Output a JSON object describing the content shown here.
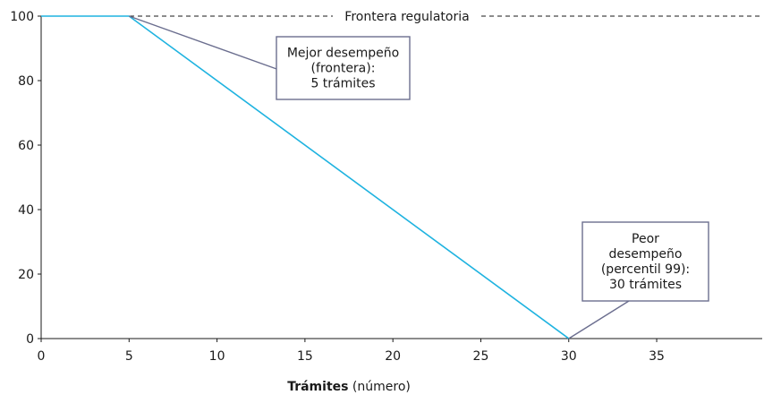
{
  "chart_data": {
    "type": "line",
    "title": "",
    "xlabel": "Trámites",
    "xlabel_unit": "(número)",
    "ylabel": "",
    "xlim": [
      0,
      41
    ],
    "ylim": [
      0,
      100
    ],
    "x_ticks": [
      0,
      5,
      10,
      15,
      20,
      25,
      30,
      35
    ],
    "y_ticks": [
      0,
      20,
      40,
      60,
      80,
      100
    ],
    "grid": false,
    "series": [
      {
        "x": [
          0,
          5,
          30
        ],
        "y": [
          100,
          100,
          0
        ],
        "color": "#1fb3e0"
      }
    ],
    "frontier_line": {
      "y": 100,
      "label": "Frontera regulatoria",
      "style": "dashed"
    },
    "annotations": [
      {
        "lines": [
          "Mejor desempeño",
          "(frontera):",
          "5 trámites"
        ],
        "point": [
          5,
          100
        ]
      },
      {
        "lines": [
          "Peor",
          "desempeño",
          "(percentil 99):",
          "30 trámites"
        ],
        "point": [
          30,
          0
        ]
      }
    ],
    "colors": {
      "line": "#1fb3e0",
      "annotation": "#6b6e8f",
      "axis": "#1a1a1a"
    }
  }
}
